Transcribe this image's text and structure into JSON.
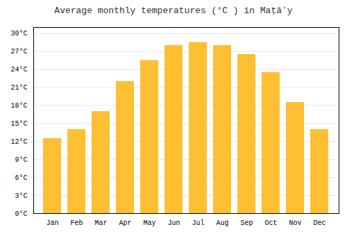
{
  "chart_data": {
    "type": "bar",
    "title": "Average monthly temperatures (°C ) in Maṭāʼy",
    "categories": [
      "Jan",
      "Feb",
      "Mar",
      "Apr",
      "May",
      "Jun",
      "Jul",
      "Aug",
      "Sep",
      "Oct",
      "Nov",
      "Dec"
    ],
    "values": [
      12.5,
      14.0,
      17.0,
      22.0,
      25.5,
      28.0,
      28.5,
      28.0,
      26.5,
      23.5,
      18.5,
      14.0
    ],
    "color": "#FFBF33",
    "ylim": [
      0,
      31
    ],
    "yticks": [
      {
        "value": 0,
        "label": "0°C"
      },
      {
        "value": 3,
        "label": "3°C"
      },
      {
        "value": 6,
        "label": "6°C"
      },
      {
        "value": 9,
        "label": "9°C"
      },
      {
        "value": 12,
        "label": "12°C"
      },
      {
        "value": 15,
        "label": "15°C"
      },
      {
        "value": 18,
        "label": "18°C"
      },
      {
        "value": 21,
        "label": "21°C"
      },
      {
        "value": 24,
        "label": "24°C"
      },
      {
        "value": 27,
        "label": "27°C"
      },
      {
        "value": 30,
        "label": "30°C"
      }
    ],
    "grid": true
  }
}
